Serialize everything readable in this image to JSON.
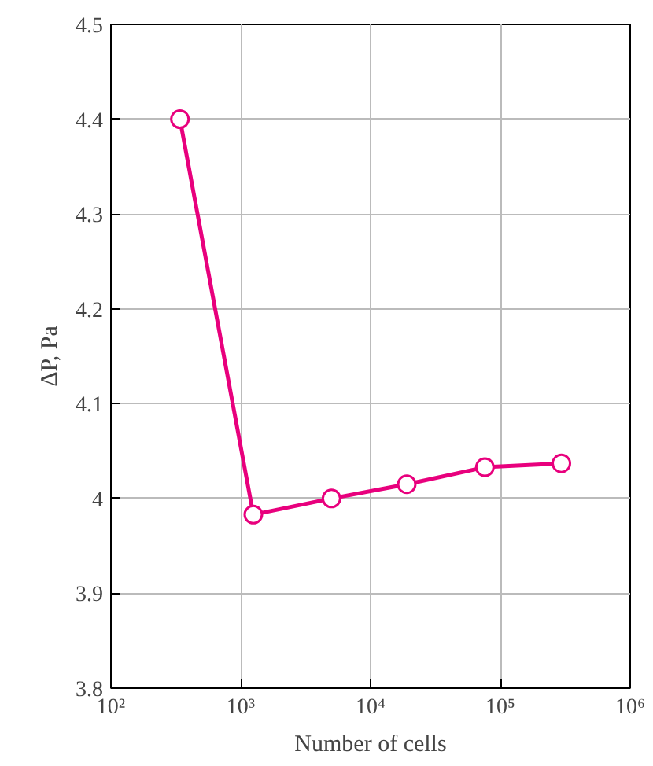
{
  "chart_data": {
    "type": "line",
    "xlabel": "Number of cells",
    "ylabel": "ΔP, Pa",
    "x": [
      340,
      1250,
      5000,
      19000,
      76000,
      295000
    ],
    "series": [
      {
        "color": "#e8007d",
        "values": [
          4.4,
          3.983,
          4.0,
          4.015,
          4.033,
          4.037
        ]
      }
    ],
    "log": "x",
    "xlim": [
      100,
      1000000
    ],
    "ylim": [
      3.8,
      4.5
    ],
    "xticks": [
      {
        "value": 100,
        "label": "10²"
      },
      {
        "value": 1000,
        "label": "10³"
      },
      {
        "value": 10000,
        "label": "10⁴"
      },
      {
        "value": 100000,
        "label": "10⁵"
      },
      {
        "value": 1000000,
        "label": "10⁶"
      }
    ],
    "yticks": [
      {
        "value": 3.8,
        "label": "3.8"
      },
      {
        "value": 3.9,
        "label": "3.9"
      },
      {
        "value": 4.0,
        "label": "4"
      },
      {
        "value": 4.1,
        "label": "4.1"
      },
      {
        "value": 4.2,
        "label": "4.2"
      },
      {
        "value": 4.3,
        "label": "4.3"
      },
      {
        "value": 4.4,
        "label": "4.4"
      },
      {
        "value": 4.5,
        "label": "4.5"
      }
    ],
    "grid": true,
    "marker": "circle",
    "line_style": "solid"
  }
}
